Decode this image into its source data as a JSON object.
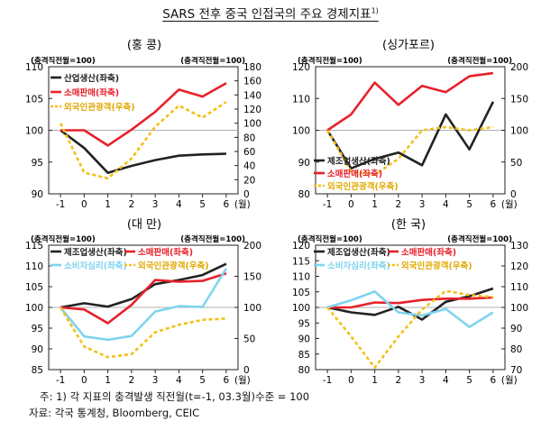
{
  "title": "SARS 전후 중국 인접국의 주요 경제지표",
  "title_note": "1)",
  "footnote": "주: 1) 각 지표의 충격발생 직전월(t=-1, 03.3월)수준 = 100",
  "source": "자료: 각국 통계청, Bloomberg, CEIC",
  "colors": {
    "black": "#222222",
    "red": "#e8202a",
    "sky": "#7fd4ee",
    "yellow": "#f2c019",
    "ref": "#b0b0b0"
  },
  "chart_data": [
    {
      "type": "line",
      "panel_title": "(홍 콩)",
      "left_axis_title": "(충격직전월=100)",
      "right_axis_title": "(충격직전월=100)",
      "x": [
        "-1",
        "0",
        "1",
        "2",
        "3",
        "4",
        "5",
        "6"
      ],
      "x_unit": "(월)",
      "ylim_left": [
        90,
        110
      ],
      "yticks_left": [
        "90",
        "95",
        "100",
        "105",
        "110"
      ],
      "ylim_right": [
        0,
        180
      ],
      "yticks_right": [
        "0",
        "20",
        "40",
        "60",
        "80",
        "100",
        "120",
        "140",
        "160",
        "180"
      ],
      "legend": [
        {
          "label": "산업생산(좌축)",
          "color": "black",
          "dashed": false
        },
        {
          "label": "소매판매(좌축)",
          "color": "red",
          "dashed": false
        },
        {
          "label": "외국인관광객(우축)",
          "color": "yellow",
          "dashed": true
        }
      ],
      "series": [
        {
          "name": "산업생산(좌축)",
          "axis": "left",
          "color": "black",
          "dashed": false,
          "values": [
            100,
            97.2,
            93.3,
            94.4,
            95.3,
            96.0,
            96.2,
            96.3
          ]
        },
        {
          "name": "소매판매(좌축)",
          "axis": "left",
          "color": "red",
          "dashed": false,
          "values": [
            100,
            100,
            97.6,
            100.1,
            102.9,
            106.4,
            105.3,
            107.4
          ]
        },
        {
          "name": "외국인관광객(우축)",
          "axis": "right",
          "color": "yellow",
          "dashed": true,
          "values": [
            100,
            30,
            22,
            50,
            95,
            125,
            108,
            130
          ]
        }
      ]
    },
    {
      "type": "line",
      "panel_title": "(싱가포르)",
      "left_axis_title": "(충격직전월=100)",
      "right_axis_title": "(충격직전월=100)",
      "x": [
        "-1",
        "0",
        "1",
        "2",
        "3",
        "4",
        "5",
        "6"
      ],
      "x_unit": "(월)",
      "ylim_left": [
        80,
        120
      ],
      "yticks_left": [
        "80",
        "90",
        "100",
        "110",
        "120"
      ],
      "ylim_right": [
        0,
        200
      ],
      "yticks_right": [
        "0",
        "50",
        "100",
        "150",
        "200"
      ],
      "legend": [
        {
          "label": "제조업생산(좌축)",
          "color": "black",
          "dashed": false
        },
        {
          "label": "소매판매(좌축)",
          "color": "red",
          "dashed": false
        },
        {
          "label": "외국인관광객(우축)",
          "color": "yellow",
          "dashed": true
        }
      ],
      "series": [
        {
          "name": "제조업생산(좌축)",
          "axis": "left",
          "color": "black",
          "dashed": false,
          "values": [
            100,
            88,
            91,
            93,
            89,
            105,
            94,
            109
          ]
        },
        {
          "name": "소매판매(좌축)",
          "axis": "left",
          "color": "red",
          "dashed": false,
          "values": [
            100,
            105,
            115,
            108,
            114,
            112,
            117,
            118
          ]
        },
        {
          "name": "외국인관광객(우축)",
          "axis": "right",
          "color": "yellow",
          "dashed": true,
          "values": [
            100,
            35,
            30,
            55,
            100,
            105,
            100,
            105
          ]
        }
      ]
    },
    {
      "type": "line",
      "panel_title": "(대 만)",
      "left_axis_title": "(충격직전월=100)",
      "right_axis_title": "(충격직전월=100)",
      "x": [
        "-1",
        "0",
        "1",
        "2",
        "3",
        "4",
        "5",
        "6"
      ],
      "x_unit": "(월)",
      "ylim_left": [
        85,
        115
      ],
      "yticks_left": [
        "85",
        "90",
        "95",
        "100",
        "105",
        "110",
        "115"
      ],
      "ylim_right": [
        0,
        200
      ],
      "yticks_right": [
        "0",
        "50",
        "100",
        "150",
        "200"
      ],
      "legend": [
        {
          "label": "제조업생산(좌축)",
          "color": "black",
          "dashed": false
        },
        {
          "label": "소매판매(좌축)",
          "color": "red",
          "dashed": false
        },
        {
          "label": "소비자심리(좌축)",
          "color": "sky",
          "dashed": false
        },
        {
          "label": "외국인관광객(우축)",
          "color": "yellow",
          "dashed": true
        }
      ],
      "series": [
        {
          "name": "제조업생산(좌축)",
          "axis": "left",
          "color": "black",
          "dashed": false,
          "values": [
            100,
            101,
            100.2,
            102,
            105.6,
            106.6,
            107.8,
            110.5
          ]
        },
        {
          "name": "소매판매(좌축)",
          "axis": "left",
          "color": "red",
          "dashed": false,
          "values": [
            100,
            99.5,
            96.2,
            100.6,
            106.6,
            106.2,
            106.4,
            108.2
          ]
        },
        {
          "name": "소비자심리(좌축)",
          "axis": "left",
          "color": "sky",
          "dashed": false,
          "values": [
            100,
            93,
            92.2,
            93.1,
            99,
            100.3,
            100.1,
            109.4
          ]
        },
        {
          "name": "외국인관광객(우축)",
          "axis": "right",
          "color": "yellow",
          "dashed": true,
          "values": [
            100,
            37,
            20,
            25,
            60,
            72,
            80,
            82
          ]
        }
      ]
    },
    {
      "type": "line",
      "panel_title": "(한 국)",
      "left_axis_title": "(충격직전월=100)",
      "right_axis_title": "(충격직전월=100)",
      "x": [
        "-1",
        "0",
        "1",
        "2",
        "3",
        "4",
        "5",
        "6"
      ],
      "x_unit": "(월)",
      "ylim_left": [
        80,
        120
      ],
      "yticks_left": [
        "80",
        "85",
        "90",
        "95",
        "100",
        "105",
        "110",
        "115",
        "120"
      ],
      "ylim_right": [
        70,
        130
      ],
      "yticks_right": [
        "70",
        "80",
        "90",
        "100",
        "110",
        "120",
        "130"
      ],
      "legend": [
        {
          "label": "제조업생산(좌축)",
          "color": "black",
          "dashed": false
        },
        {
          "label": "소매판매(좌축)",
          "color": "red",
          "dashed": false
        },
        {
          "label": "소비자심리(좌축)",
          "color": "sky",
          "dashed": false
        },
        {
          "label": "외국인관광객(우축)",
          "color": "yellow",
          "dashed": true
        }
      ],
      "series": [
        {
          "name": "제조업생산(좌축)",
          "axis": "left",
          "color": "black",
          "dashed": false,
          "values": [
            100,
            98.4,
            97.6,
            100.2,
            96.1,
            101.8,
            103.6,
            106.1
          ]
        },
        {
          "name": "소매판매(좌축)",
          "axis": "left",
          "color": "red",
          "dashed": false,
          "values": [
            100,
            100,
            101.6,
            101.4,
            102.4,
            102.8,
            102.8,
            103.2
          ]
        },
        {
          "name": "소비자심리(좌축)",
          "axis": "left",
          "color": "sky",
          "dashed": false,
          "values": [
            100,
            102.3,
            105.1,
            98.4,
            97.4,
            99.5,
            93.7,
            98.4
          ]
        },
        {
          "name": "외국인관광객(우축)",
          "axis": "right",
          "color": "yellow",
          "dashed": true,
          "values": [
            100,
            86,
            71,
            86,
            99,
            108,
            106,
            105
          ]
        }
      ]
    }
  ]
}
